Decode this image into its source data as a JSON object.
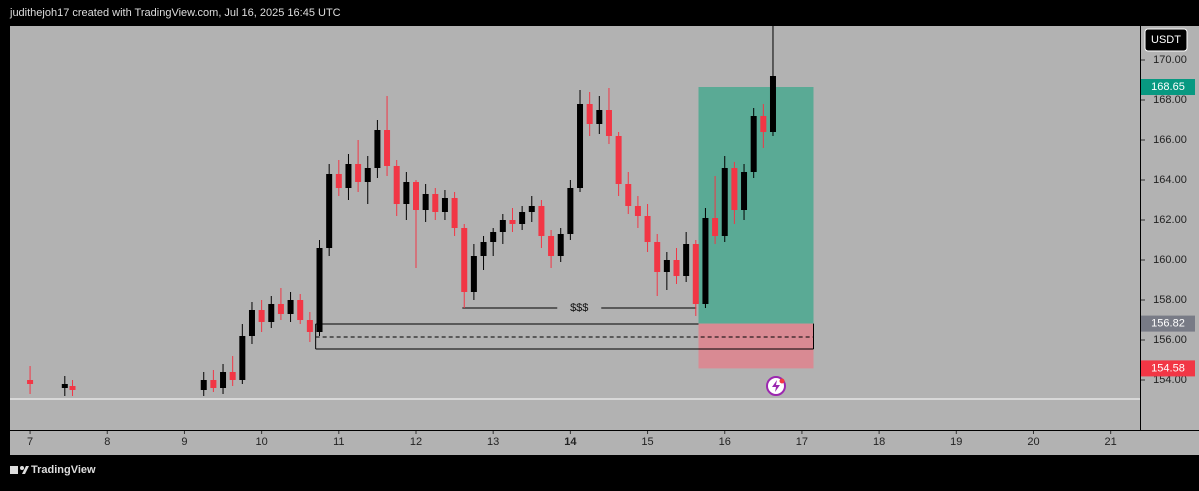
{
  "header": {
    "title": "judithejoh17 created with TradingView.com, Jul 16, 2025 16:45 UTC"
  },
  "footer": {
    "brand": "TradingView"
  },
  "chart_data": {
    "type": "candlestick",
    "currency": "USDT",
    "x": [
      7.0,
      7.45,
      7.55,
      9.25,
      9.375,
      9.5,
      9.625,
      9.75,
      9.875,
      10.0,
      10.125,
      10.25,
      10.375,
      10.5,
      10.625,
      10.75,
      10.875,
      11.0,
      11.125,
      11.25,
      11.375,
      11.5,
      11.625,
      11.75,
      11.875,
      12.0,
      12.125,
      12.25,
      12.375,
      12.5,
      12.625,
      12.75,
      12.875,
      13.0,
      13.125,
      13.25,
      13.375,
      13.5,
      13.625,
      13.75,
      13.875,
      14.0,
      14.125,
      14.25,
      14.375,
      14.5,
      14.625,
      14.75,
      14.875,
      15.0,
      15.125,
      15.25,
      15.375,
      15.5,
      15.625,
      15.75,
      15.875,
      16.0,
      16.125,
      16.25,
      16.375,
      16.5,
      16.625
    ],
    "open": [
      154.0,
      153.6,
      153.7,
      153.5,
      154.0,
      153.6,
      154.4,
      154.0,
      156.2,
      157.5,
      156.9,
      157.8,
      157.3,
      158.0,
      157.0,
      156.4,
      160.6,
      164.3,
      163.6,
      164.8,
      163.9,
      164.6,
      166.5,
      164.7,
      162.8,
      163.9,
      162.5,
      163.3,
      162.4,
      163.1,
      161.6,
      158.4,
      160.2,
      160.9,
      161.4,
      162.0,
      161.8,
      162.4,
      162.7,
      161.2,
      160.2,
      161.3,
      163.6,
      167.8,
      166.8,
      167.5,
      166.2,
      163.8,
      162.7,
      162.2,
      160.9,
      159.4,
      160.0,
      159.2,
      160.8,
      157.8,
      162.1,
      161.2,
      164.6,
      162.5,
      164.4,
      167.2,
      166.4
    ],
    "high": [
      154.7,
      154.2,
      154.0,
      154.4,
      154.5,
      154.8,
      155.2,
      156.8,
      157.9,
      158.0,
      158.2,
      158.6,
      158.4,
      158.3,
      157.4,
      161.0,
      164.8,
      165.0,
      165.3,
      166.0,
      165.2,
      167.0,
      168.2,
      165.0,
      164.4,
      164.0,
      163.8,
      163.6,
      163.5,
      163.4,
      161.8,
      160.8,
      161.2,
      161.6,
      162.3,
      162.6,
      162.7,
      163.2,
      163.0,
      161.5,
      161.6,
      164.0,
      168.5,
      168.4,
      168.2,
      168.6,
      166.4,
      164.4,
      163.2,
      162.8,
      161.3,
      160.4,
      160.6,
      161.4,
      161.0,
      162.6,
      164.2,
      165.2,
      164.9,
      164.8,
      167.6,
      167.8,
      172.0
    ],
    "low": [
      153.3,
      153.2,
      153.2,
      153.2,
      153.4,
      153.3,
      153.7,
      153.8,
      155.8,
      156.4,
      156.6,
      157.0,
      156.9,
      156.8,
      155.9,
      156.2,
      160.2,
      163.2,
      163.0,
      163.4,
      162.8,
      164.1,
      164.2,
      162.2,
      162.0,
      159.6,
      161.9,
      162.0,
      162.0,
      161.2,
      157.6,
      158.0,
      159.5,
      160.2,
      160.8,
      161.4,
      161.5,
      161.9,
      160.6,
      159.6,
      159.9,
      161.0,
      163.4,
      166.2,
      166.3,
      165.8,
      163.2,
      162.3,
      161.6,
      160.4,
      158.2,
      158.5,
      158.8,
      158.9,
      157.2,
      157.6,
      160.8,
      160.9,
      161.8,
      162.0,
      164.1,
      165.6,
      166.2
    ],
    "close": [
      153.8,
      153.8,
      153.5,
      154.0,
      153.6,
      154.4,
      154.0,
      156.2,
      157.5,
      156.9,
      157.8,
      157.3,
      158.0,
      157.0,
      156.4,
      160.6,
      164.3,
      163.6,
      164.8,
      163.9,
      164.6,
      166.5,
      164.7,
      162.8,
      163.9,
      162.5,
      163.3,
      162.4,
      163.1,
      161.6,
      158.4,
      160.2,
      160.9,
      161.4,
      162.0,
      161.8,
      162.4,
      162.7,
      161.2,
      160.2,
      161.3,
      163.6,
      167.8,
      166.8,
      167.5,
      166.2,
      163.8,
      162.7,
      162.2,
      160.9,
      159.4,
      160.0,
      159.2,
      160.8,
      157.8,
      162.1,
      161.2,
      164.6,
      162.5,
      164.4,
      167.2,
      166.4,
      169.2
    ],
    "up_color": "#000000",
    "down_color": "#f23645",
    "xlim": [
      6.74,
      21.38
    ],
    "xticks": [
      7,
      8,
      9,
      10,
      11,
      12,
      13,
      14,
      15,
      16,
      17,
      18,
      19,
      20,
      21
    ],
    "bold_xtick": 14,
    "ylim": [
      151.5,
      171.7
    ],
    "yticks": [
      {
        "value": 154,
        "label": "154.00"
      },
      {
        "value": 156,
        "label": "156.00"
      },
      {
        "value": 158,
        "label": "158.00"
      },
      {
        "value": 160,
        "label": "160.00"
      },
      {
        "value": 162,
        "label": "162.00"
      },
      {
        "value": 164,
        "label": "164.00"
      },
      {
        "value": 166,
        "label": "166.00"
      },
      {
        "value": 168,
        "label": "168.00"
      },
      {
        "value": 170,
        "label": "170.00"
      }
    ],
    "position": {
      "start": 15.66,
      "end": 17.15,
      "target": 168.65,
      "entry": 156.82,
      "stop": 154.58,
      "target_color": "#5aaa95",
      "stop_color": "#d98a93"
    },
    "liquidity_line": {
      "label": "$$$",
      "price": 157.6,
      "start": 12.6,
      "end": 15.63
    },
    "zone": {
      "top": 156.8,
      "middle": 156.15,
      "bottom": 155.55,
      "start": 10.7,
      "top_end": 15.66,
      "end": 17.15
    },
    "horizontal_line": 153.05
  }
}
